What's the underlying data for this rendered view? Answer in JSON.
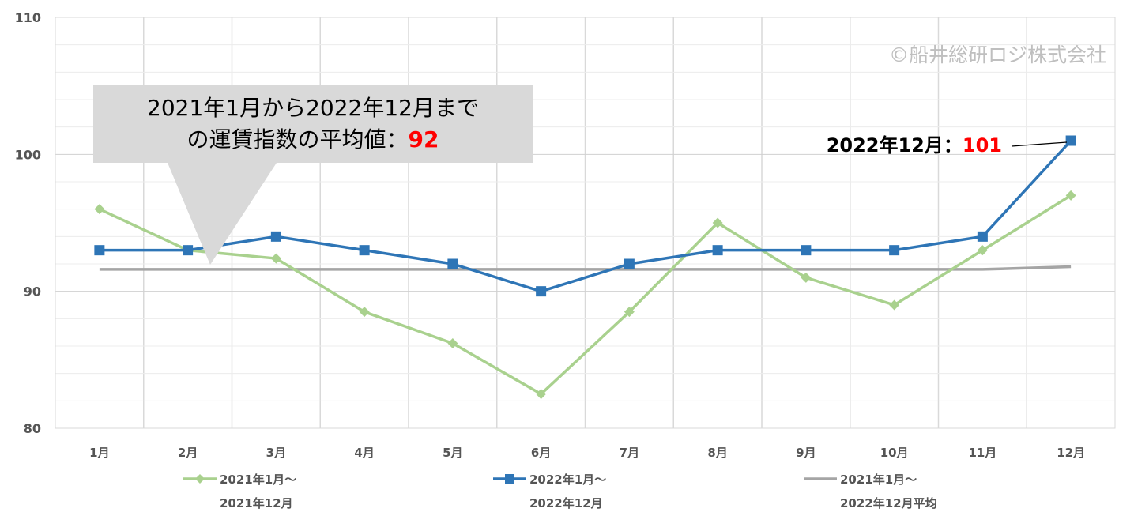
{
  "chart_data": {
    "type": "line",
    "categories": [
      "1月",
      "2月",
      "3月",
      "4月",
      "5月",
      "6月",
      "7月",
      "8月",
      "9月",
      "10月",
      "11月",
      "12月"
    ],
    "ylim": [
      80,
      110
    ],
    "yticks": [
      "80",
      "90",
      "100",
      "110"
    ],
    "grid": true,
    "legend_position": "bottom",
    "series": [
      {
        "name_line1": "2021年1月～",
        "name_line2": "2021年12月",
        "color": "#a9d18e",
        "marker": "diamond",
        "values": [
          96,
          93,
          92.4,
          88.5,
          86.2,
          82.5,
          88.5,
          95,
          91,
          89,
          93,
          97
        ]
      },
      {
        "name_line1": "2022年1月～",
        "name_line2": "2022年12月",
        "color": "#2e75b6",
        "marker": "square",
        "values": [
          93,
          93,
          94,
          93,
          92,
          90,
          92,
          93,
          93,
          93,
          94,
          101
        ]
      },
      {
        "name_line1": "2021年1月～",
        "name_line2": "2022年12月平均",
        "color": "#a5a5a5",
        "marker": "none",
        "values": [
          91.6,
          91.6,
          91.6,
          91.6,
          91.6,
          91.6,
          91.6,
          91.6,
          91.6,
          91.6,
          91.6,
          91.8
        ]
      }
    ],
    "watermark": "©船井総研ロジ株式会社",
    "callout_avg": {
      "line1": "2021年1月から2022年12月まで",
      "line2_prefix": "の運賃指数の平均値：",
      "value": "92"
    },
    "label_dec2022": {
      "prefix": "2022年12月：",
      "value": "101"
    }
  }
}
